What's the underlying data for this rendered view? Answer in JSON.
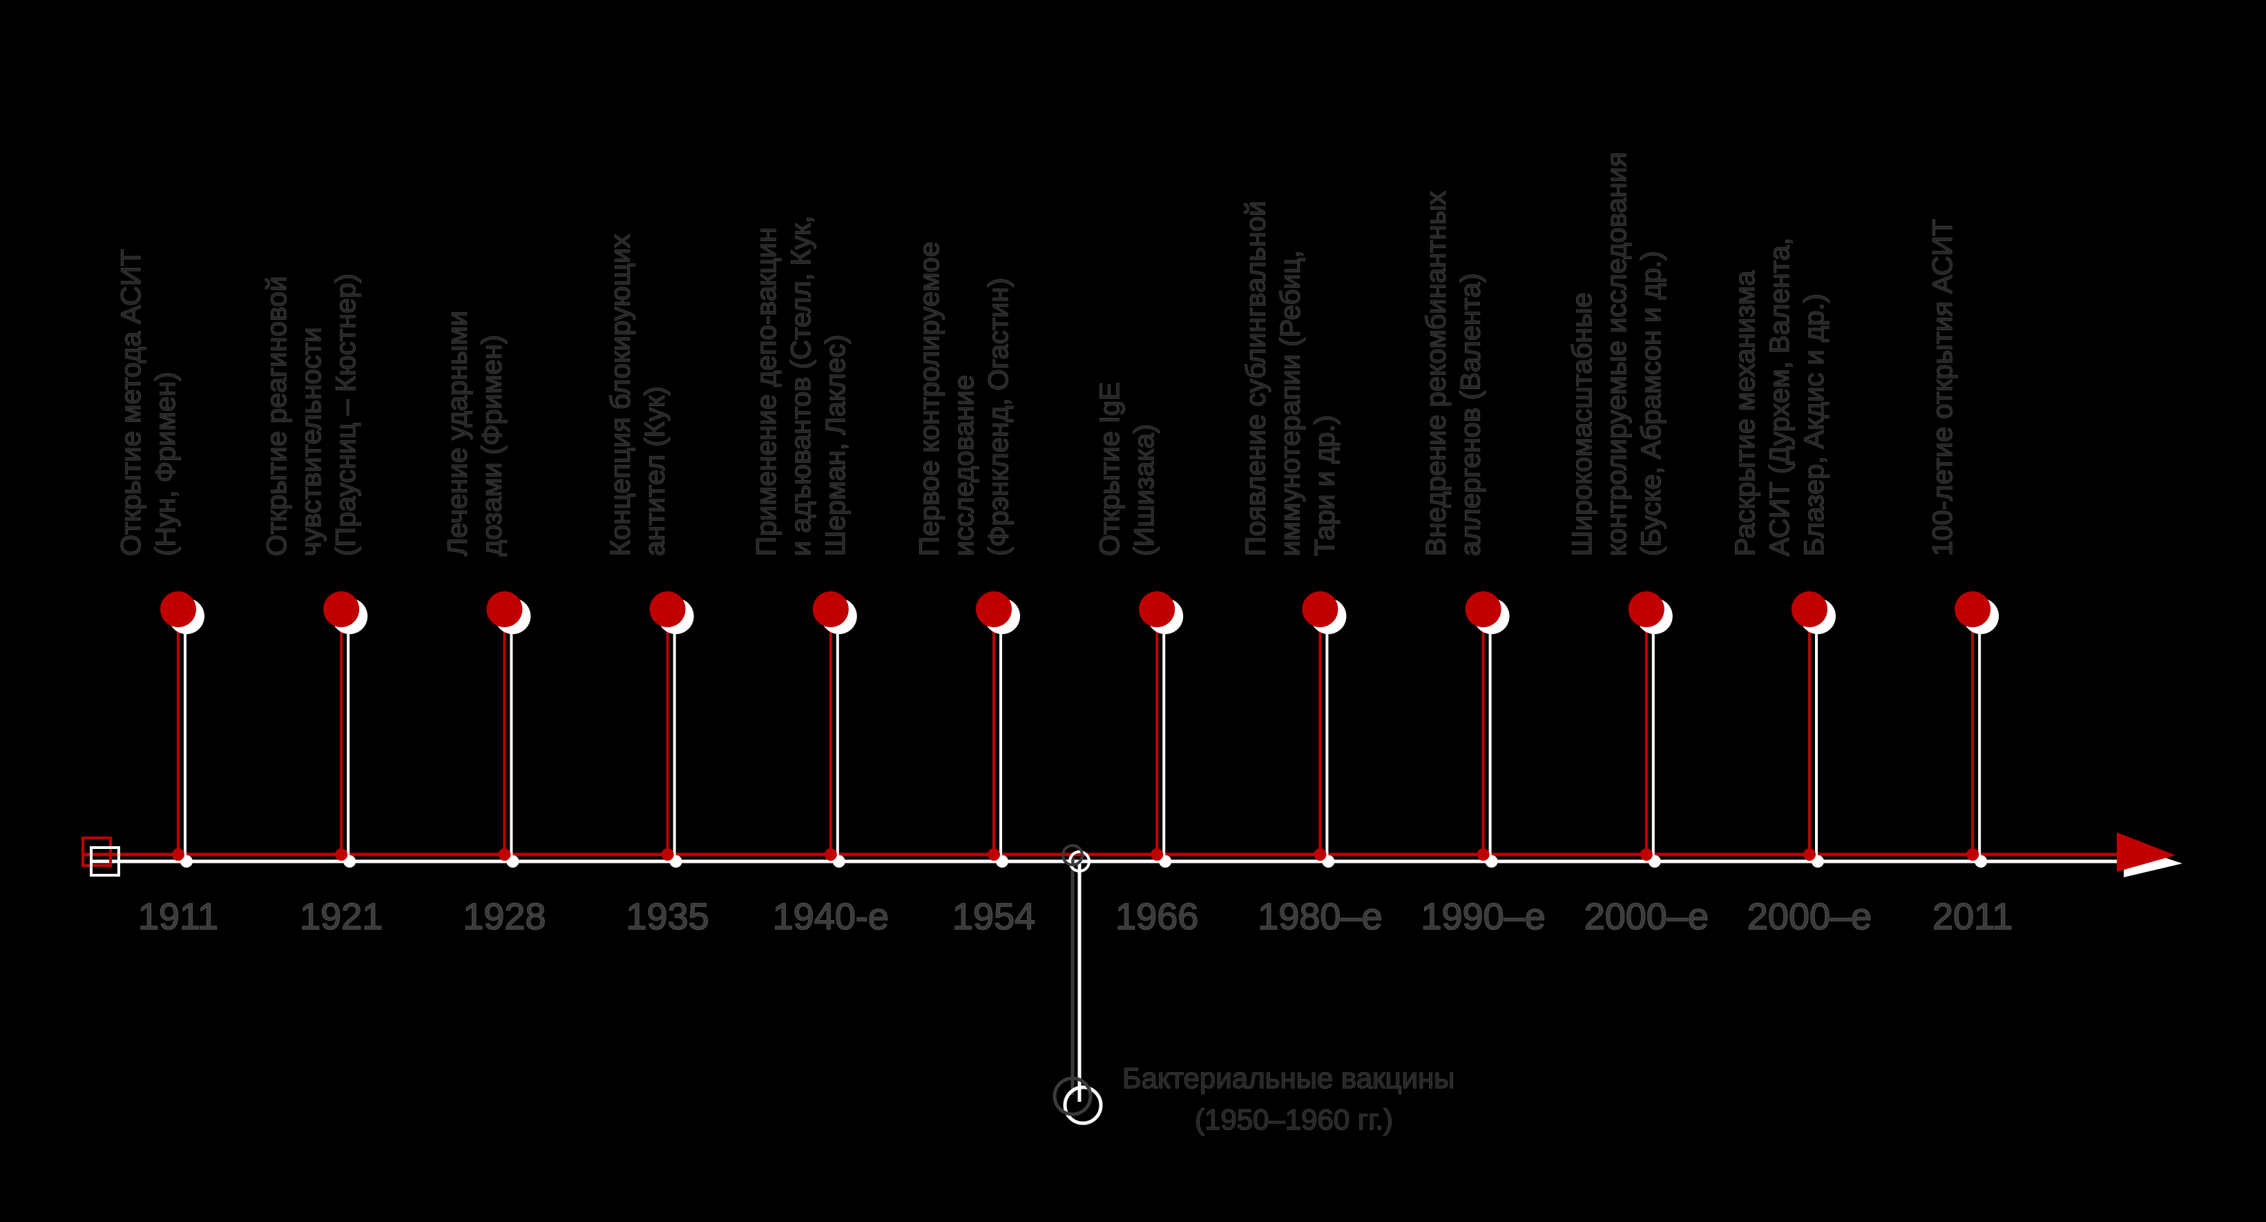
{
  "colors": {
    "background": "#000000",
    "accent": "#c00000",
    "secondary": "#ffffff",
    "text": "#3a3a3a"
  },
  "events": [
    {
      "year": "1911",
      "lines": [
        "Открытие метода АСИТ",
        "(Нун, Фримен)"
      ]
    },
    {
      "year": "1921",
      "lines": [
        "Открытие реагиновой",
        "чувствительности",
        "(Праусниц – Кюстнер)"
      ]
    },
    {
      "year": "1928",
      "lines": [
        "Лечение ударными",
        "дозами (Фримен)"
      ]
    },
    {
      "year": "1935",
      "lines": [
        "Концепция блокирующих",
        "антител (Кук)"
      ]
    },
    {
      "year": "1940-е",
      "lines": [
        "Применение депо-вакцин",
        "и адъювантов (Стелл, Кук,",
        "Шерман, Лаклес)"
      ]
    },
    {
      "year": "1954",
      "lines": [
        "Первое контролируемое",
        "исследование",
        "(Фрэнкленд, Огастин)"
      ]
    },
    {
      "year": "1966",
      "lines": [
        "Открытие IgE",
        "(Ишизака)"
      ]
    },
    {
      "year": "1980–е",
      "lines": [
        "Появление сублингвальной",
        "иммунотерапии (Ребиц,",
        "Тари и др.)"
      ]
    },
    {
      "year": "1990–е",
      "lines": [
        "Внедрение рекомбинантных",
        "аллергенов (Валента)"
      ]
    },
    {
      "year": "2000–е",
      "lines": [
        "Широкомасштабные",
        "контролируемые исследования",
        "(Буске, Абрамсон и др.)"
      ]
    },
    {
      "year": "2000–е",
      "lines": [
        "Раскрытие механизма",
        "АСИТ (Дурхем, Валента,",
        "Блазер, Акдис и др.)"
      ]
    },
    {
      "year": "2011",
      "lines": [
        "100-летие открытия АСИТ"
      ]
    }
  ],
  "side_event": {
    "lines": [
      "Бактериальные вакцины",
      "(1950–1960 гг.)"
    ]
  }
}
